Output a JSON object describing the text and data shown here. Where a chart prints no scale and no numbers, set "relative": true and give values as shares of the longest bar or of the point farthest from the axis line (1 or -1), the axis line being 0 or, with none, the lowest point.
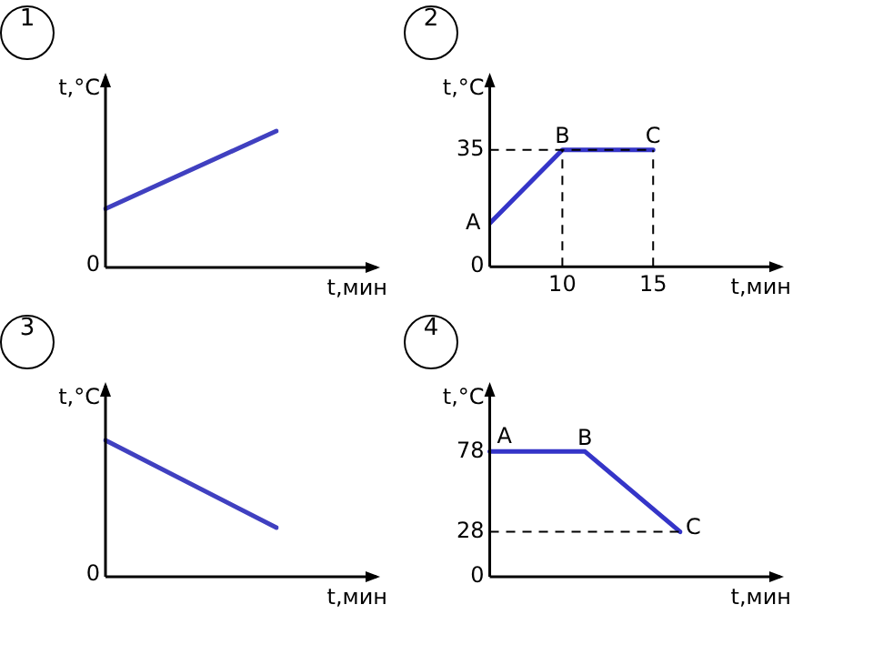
{
  "chart_data": [
    {
      "type": "line",
      "title": "1",
      "xlabel": "t,мин",
      "ylabel": "t,°C",
      "categories": [
        null,
        null
      ],
      "values": [
        0.43,
        1
      ],
      "color": "#4040c0",
      "relative": true,
      "tick_labels": false,
      "annotations": [
        "0"
      ]
    },
    {
      "type": "line",
      "title": "2",
      "xlabel": "t,мин",
      "ylabel": "t,°C",
      "x": [
        6,
        10,
        15
      ],
      "values": [
        13,
        35,
        35
      ],
      "color": "#3535c8",
      "xlim": [
        6,
        22
      ],
      "xticks": [
        10,
        15
      ],
      "ylim": [
        0,
        57
      ],
      "yticks": [
        0,
        35
      ],
      "ref_lines": [
        {
          "axis": "y",
          "value": 35,
          "line_style": "dashed",
          "color": "#000000"
        },
        {
          "axis": "x",
          "value": 10,
          "line_style": "dashed",
          "color": "#000000"
        },
        {
          "axis": "x",
          "value": 15,
          "line_style": "dashed",
          "color": "#000000"
        }
      ],
      "annotations": [
        {
          "text": "A",
          "x": 6,
          "y": 13
        },
        {
          "text": "B",
          "x": 10,
          "y": 35
        },
        {
          "text": "C",
          "x": 15,
          "y": 35
        }
      ]
    },
    {
      "type": "line",
      "title": "3",
      "xlabel": "t,мин",
      "ylabel": "t,°C",
      "categories": [
        null,
        null
      ],
      "values": [
        1,
        0.36
      ],
      "color": "#4040c0",
      "relative": true,
      "tick_labels": false,
      "annotations": [
        "0"
      ]
    },
    {
      "type": "line",
      "title": "4",
      "xlabel": "t,мин",
      "ylabel": "t,°C",
      "categories": [
        null,
        null,
        null
      ],
      "values": [
        78,
        78,
        28
      ],
      "color": "#3535c8",
      "ylim": [
        0,
        119
      ],
      "yticks": [
        0,
        28,
        78
      ],
      "tick_labels": "y",
      "ref_lines": [
        {
          "axis": "y",
          "value": 28,
          "line_style": "dashed",
          "color": "#000000"
        }
      ],
      "annotations": [
        {
          "text": "A",
          "y": 78
        },
        {
          "text": "B",
          "y": 78
        },
        "C"
      ]
    }
  ]
}
